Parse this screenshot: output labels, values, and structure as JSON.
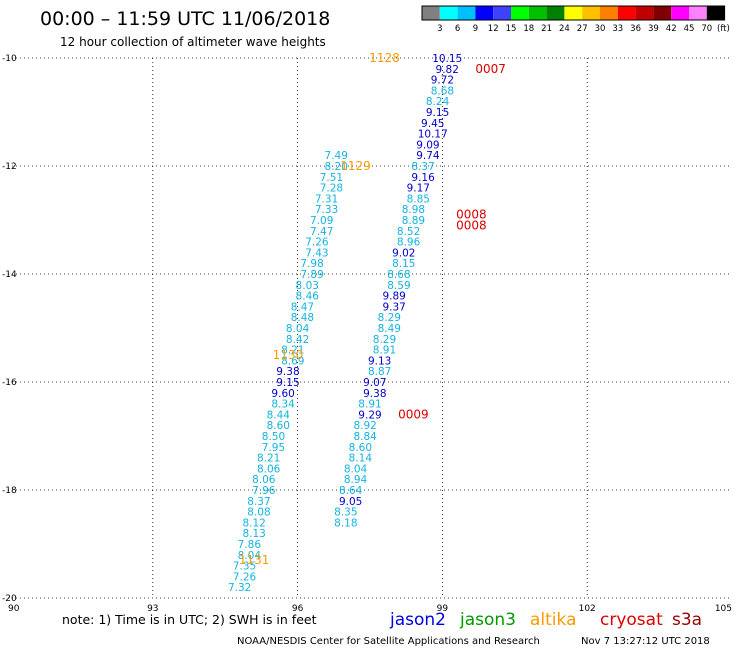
{
  "header": {
    "title": "00:00 – 11:59 UTC 11/06/2018",
    "subtitle": "12 hour collection of altimeter wave heights"
  },
  "colorbar": {
    "colors": [
      "#808080",
      "#00ffff",
      "#00bfff",
      "#0000ff",
      "#4040ff",
      "#00ff00",
      "#00c000",
      "#008000",
      "#ffff00",
      "#ffc000",
      "#ff8000",
      "#ff0000",
      "#c00000",
      "#800000",
      "#ff00ff",
      "#ff80ff",
      "#000000"
    ],
    "labels": [
      "3",
      "6",
      "9",
      "12",
      "15",
      "18",
      "21",
      "24",
      "27",
      "30",
      "33",
      "36",
      "39",
      "42",
      "45",
      "70"
    ],
    "unit": "(ft)"
  },
  "chart_data": {
    "type": "scatter",
    "xlim": [
      90,
      105
    ],
    "ylim": [
      -20,
      -10
    ],
    "x_ticks": [
      "90",
      "93",
      "96",
      "99",
      "102",
      "105"
    ],
    "y_ticks": [
      "-10",
      "-12",
      "-14",
      "-16",
      "-18",
      "-20"
    ],
    "grid": true,
    "series": [
      {
        "name": "altika",
        "color": "#ff9900",
        "points": [
          {
            "lat": -11.8,
            "lon": 96.8,
            "v": "7.49",
            "c": "#12b4e0"
          },
          {
            "lat": -12.0,
            "lon": 96.8,
            "v": "8.20",
            "c": "#12b4e0"
          },
          {
            "lat": -12.2,
            "lon": 96.7,
            "v": "7.51",
            "c": "#12b4e0"
          },
          {
            "lat": -12.4,
            "lon": 96.7,
            "v": "7.28",
            "c": "#12b4e0"
          },
          {
            "lat": -12.6,
            "lon": 96.6,
            "v": "7.31",
            "c": "#12b4e0"
          },
          {
            "lat": -12.8,
            "lon": 96.6,
            "v": "7.33",
            "c": "#12b4e0"
          },
          {
            "lat": -13.0,
            "lon": 96.5,
            "v": "7.09",
            "c": "#12b4e0"
          },
          {
            "lat": -13.2,
            "lon": 96.5,
            "v": "7.47",
            "c": "#12b4e0"
          },
          {
            "lat": -13.4,
            "lon": 96.4,
            "v": "7.26",
            "c": "#12b4e0"
          },
          {
            "lat": -13.6,
            "lon": 96.4,
            "v": "7.43",
            "c": "#12b4e0"
          },
          {
            "lat": -13.8,
            "lon": 96.3,
            "v": "7.98",
            "c": "#12b4e0"
          },
          {
            "lat": -14.0,
            "lon": 96.3,
            "v": "7.89",
            "c": "#12b4e0"
          },
          {
            "lat": -14.2,
            "lon": 96.2,
            "v": "8.03",
            "c": "#12b4e0"
          },
          {
            "lat": -14.4,
            "lon": 96.2,
            "v": "8.46",
            "c": "#12b4e0"
          },
          {
            "lat": -14.6,
            "lon": 96.1,
            "v": "8.47",
            "c": "#12b4e0"
          },
          {
            "lat": -14.8,
            "lon": 96.1,
            "v": "8.48",
            "c": "#12b4e0"
          },
          {
            "lat": -15.0,
            "lon": 96.0,
            "v": "8.04",
            "c": "#12b4e0"
          },
          {
            "lat": -15.2,
            "lon": 96.0,
            "v": "8.42",
            "c": "#12b4e0"
          },
          {
            "lat": -15.4,
            "lon": 95.9,
            "v": "8.21",
            "c": "#12b4e0"
          },
          {
            "lat": -15.6,
            "lon": 95.9,
            "v": "8.69",
            "c": "#12b4e0"
          },
          {
            "lat": -15.8,
            "lon": 95.8,
            "v": "9.38",
            "c": "#0000cc"
          },
          {
            "lat": -16.0,
            "lon": 95.8,
            "v": "9.15",
            "c": "#0000cc"
          },
          {
            "lat": -16.2,
            "lon": 95.7,
            "v": "9.60",
            "c": "#0000cc"
          },
          {
            "lat": -16.4,
            "lon": 95.7,
            "v": "8.34",
            "c": "#12b4e0"
          },
          {
            "lat": -16.6,
            "lon": 95.6,
            "v": "8.44",
            "c": "#12b4e0"
          },
          {
            "lat": -16.8,
            "lon": 95.6,
            "v": "8.60",
            "c": "#12b4e0"
          },
          {
            "lat": -17.0,
            "lon": 95.5,
            "v": "8.50",
            "c": "#12b4e0"
          },
          {
            "lat": -17.2,
            "lon": 95.5,
            "v": "7.95",
            "c": "#12b4e0"
          },
          {
            "lat": -17.4,
            "lon": 95.4,
            "v": "8.21",
            "c": "#12b4e0"
          },
          {
            "lat": -17.6,
            "lon": 95.4,
            "v": "8.06",
            "c": "#12b4e0"
          },
          {
            "lat": -17.8,
            "lon": 95.3,
            "v": "8.06",
            "c": "#12b4e0"
          },
          {
            "lat": -18.0,
            "lon": 95.3,
            "v": "7.96",
            "c": "#12b4e0"
          },
          {
            "lat": -18.2,
            "lon": 95.2,
            "v": "8.37",
            "c": "#12b4e0"
          },
          {
            "lat": -18.4,
            "lon": 95.2,
            "v": "8.08",
            "c": "#12b4e0"
          },
          {
            "lat": -18.6,
            "lon": 95.1,
            "v": "8.12",
            "c": "#12b4e0"
          },
          {
            "lat": -18.8,
            "lon": 95.1,
            "v": "8.13",
            "c": "#12b4e0"
          },
          {
            "lat": -19.0,
            "lon": 95.0,
            "v": "7.86",
            "c": "#12b4e0"
          },
          {
            "lat": -19.2,
            "lon": 95.0,
            "v": "8.04",
            "c": "#12b4e0"
          },
          {
            "lat": -19.4,
            "lon": 94.9,
            "v": "7.35",
            "c": "#12b4e0"
          },
          {
            "lat": -19.6,
            "lon": 94.9,
            "v": "7.26",
            "c": "#12b4e0"
          },
          {
            "lat": -19.8,
            "lon": 94.8,
            "v": "7.32",
            "c": "#12b4e0"
          }
        ],
        "times": [
          {
            "t": "1128",
            "lat": -10.0,
            "lon": 97.8
          },
          {
            "t": "1129",
            "lat": -12.0,
            "lon": 97.2
          },
          {
            "t": "1130",
            "lat": -15.5,
            "lon": 95.8
          },
          {
            "t": "1131",
            "lat": -19.3,
            "lon": 95.1
          }
        ]
      },
      {
        "name": "cryosat",
        "color": "#dd0000",
        "points": [
          {
            "lat": -10.0,
            "lon": 99.1,
            "v": "10.15",
            "c": "#0000cc"
          },
          {
            "lat": -10.2,
            "lon": 99.1,
            "v": "9.82",
            "c": "#0000cc"
          },
          {
            "lat": -10.4,
            "lon": 99.0,
            "v": "9.72",
            "c": "#0000cc"
          },
          {
            "lat": -10.6,
            "lon": 99.0,
            "v": "8.68",
            "c": "#12b4e0"
          },
          {
            "lat": -10.8,
            "lon": 98.9,
            "v": "8.24",
            "c": "#12b4e0"
          },
          {
            "lat": -11.0,
            "lon": 98.9,
            "v": "9.15",
            "c": "#0000cc"
          },
          {
            "lat": -11.2,
            "lon": 98.8,
            "v": "9.45",
            "c": "#0000cc"
          },
          {
            "lat": -11.4,
            "lon": 98.8,
            "v": "10.17",
            "c": "#0000cc"
          },
          {
            "lat": -11.6,
            "lon": 98.7,
            "v": "9.09",
            "c": "#0000cc"
          },
          {
            "lat": -11.8,
            "lon": 98.7,
            "v": "9.74",
            "c": "#0000cc"
          },
          {
            "lat": -12.0,
            "lon": 98.6,
            "v": "8.37",
            "c": "#12b4e0"
          },
          {
            "lat": -12.2,
            "lon": 98.6,
            "v": "9.16",
            "c": "#0000cc"
          },
          {
            "lat": -12.4,
            "lon": 98.5,
            "v": "9.17",
            "c": "#0000cc"
          },
          {
            "lat": -12.6,
            "lon": 98.5,
            "v": "8.85",
            "c": "#12b4e0"
          },
          {
            "lat": -12.8,
            "lon": 98.4,
            "v": "8.98",
            "c": "#12b4e0"
          },
          {
            "lat": -13.0,
            "lon": 98.4,
            "v": "8.89",
            "c": "#12b4e0"
          },
          {
            "lat": -13.2,
            "lon": 98.3,
            "v": "8.52",
            "c": "#12b4e0"
          },
          {
            "lat": -13.4,
            "lon": 98.3,
            "v": "8.96",
            "c": "#12b4e0"
          },
          {
            "lat": -13.6,
            "lon": 98.2,
            "v": "9.02",
            "c": "#0000cc"
          },
          {
            "lat": -13.8,
            "lon": 98.2,
            "v": "8.15",
            "c": "#12b4e0"
          },
          {
            "lat": -14.0,
            "lon": 98.1,
            "v": "8.68",
            "c": "#12b4e0"
          },
          {
            "lat": -14.2,
            "lon": 98.1,
            "v": "8.59",
            "c": "#12b4e0"
          },
          {
            "lat": -14.4,
            "lon": 98.0,
            "v": "9.89",
            "c": "#0000cc"
          },
          {
            "lat": -14.6,
            "lon": 98.0,
            "v": "9.37",
            "c": "#0000cc"
          },
          {
            "lat": -14.8,
            "lon": 97.9,
            "v": "8.29",
            "c": "#12b4e0"
          },
          {
            "lat": -15.0,
            "lon": 97.9,
            "v": "8.49",
            "c": "#12b4e0"
          },
          {
            "lat": -15.2,
            "lon": 97.8,
            "v": "8.29",
            "c": "#12b4e0"
          },
          {
            "lat": -15.4,
            "lon": 97.8,
            "v": "8.91",
            "c": "#12b4e0"
          },
          {
            "lat": -15.6,
            "lon": 97.7,
            "v": "9.13",
            "c": "#0000cc"
          },
          {
            "lat": -15.8,
            "lon": 97.7,
            "v": "8.87",
            "c": "#12b4e0"
          },
          {
            "lat": -16.0,
            "lon": 97.6,
            "v": "9.07",
            "c": "#0000cc"
          },
          {
            "lat": -16.2,
            "lon": 97.6,
            "v": "9.38",
            "c": "#0000cc"
          },
          {
            "lat": -16.4,
            "lon": 97.5,
            "v": "8.91",
            "c": "#12b4e0"
          },
          {
            "lat": -16.6,
            "lon": 97.5,
            "v": "9.29",
            "c": "#0000cc"
          },
          {
            "lat": -16.8,
            "lon": 97.4,
            "v": "8.92",
            "c": "#12b4e0"
          },
          {
            "lat": -17.0,
            "lon": 97.4,
            "v": "8.84",
            "c": "#12b4e0"
          },
          {
            "lat": -17.2,
            "lon": 97.3,
            "v": "8.60",
            "c": "#12b4e0"
          },
          {
            "lat": -17.4,
            "lon": 97.3,
            "v": "8.14",
            "c": "#12b4e0"
          },
          {
            "lat": -17.6,
            "lon": 97.2,
            "v": "8.04",
            "c": "#12b4e0"
          },
          {
            "lat": -17.8,
            "lon": 97.2,
            "v": "8.94",
            "c": "#12b4e0"
          },
          {
            "lat": -18.0,
            "lon": 97.1,
            "v": "8.64",
            "c": "#12b4e0"
          },
          {
            "lat": -18.2,
            "lon": 97.1,
            "v": "9.05",
            "c": "#0000cc"
          },
          {
            "lat": -18.4,
            "lon": 97.0,
            "v": "8.35",
            "c": "#12b4e0"
          },
          {
            "lat": -18.6,
            "lon": 97.0,
            "v": "8.18",
            "c": "#12b4e0"
          }
        ],
        "times": [
          {
            "t": "0007",
            "lat": -10.2,
            "lon": 100.0
          },
          {
            "t": "0008",
            "lat": -12.9,
            "lon": 99.6
          },
          {
            "t": "0008",
            "lat": -13.1,
            "lon": 99.6
          },
          {
            "t": "0009",
            "lat": -16.6,
            "lon": 98.4
          }
        ]
      }
    ]
  },
  "footer": {
    "note": "note:  1) Time is in UTC;  2) SWH is in feet",
    "satellites": [
      {
        "name": "jason2",
        "color": "#0000dd"
      },
      {
        "name": "jason3",
        "color": "#009900"
      },
      {
        "name": "altika",
        "color": "#ff9900"
      },
      {
        "name": "cryosat",
        "color": "#dd0000"
      },
      {
        "name": "s3a",
        "color": "#990000"
      }
    ],
    "credit": "NOAA/NESDIS Center for Satellite Applications and Research",
    "generated": "Nov  7 13:27:12 UTC 2018"
  }
}
